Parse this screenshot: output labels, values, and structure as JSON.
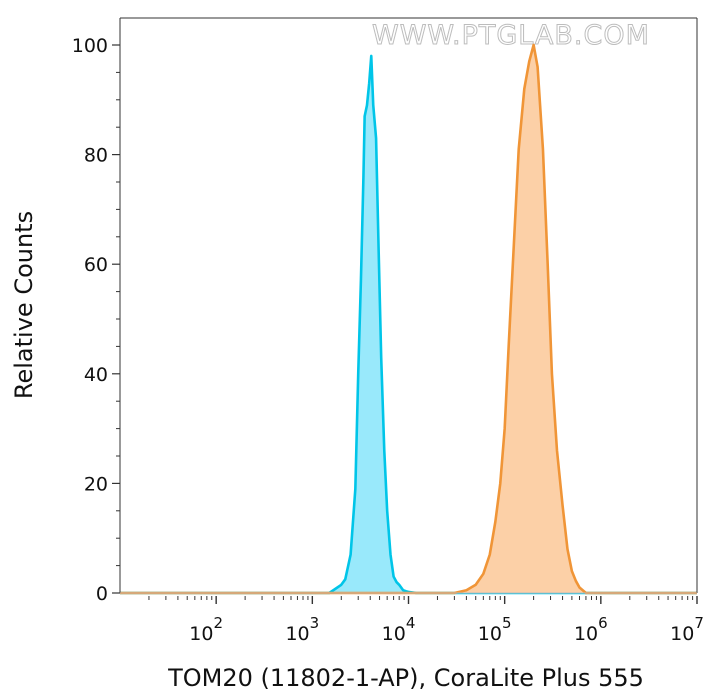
{
  "chart_data": {
    "type": "area",
    "title": "",
    "watermark": "WWW.PTGLAB.COM",
    "xlabel": "TOM20 (11802-1-AP), CoraLite Plus 555",
    "ylabel": "Relative Counts",
    "x_scale": "log",
    "xlim": [
      10,
      10000000
    ],
    "ylim": [
      0,
      105
    ],
    "y_ticks": [
      "0",
      "20",
      "40",
      "60",
      "80",
      "100"
    ],
    "x_ticks": [
      {
        "base": "10",
        "exp": "2"
      },
      {
        "base": "10",
        "exp": "3"
      },
      {
        "base": "10",
        "exp": "4"
      },
      {
        "base": "10",
        "exp": "5"
      },
      {
        "base": "10",
        "exp": "6"
      },
      {
        "base": "10",
        "exp": "7"
      }
    ],
    "series": [
      {
        "color": "#00c5e8",
        "fill": "#99e9fb",
        "x": [
          10,
          1500,
          2000,
          2200,
          2500,
          2800,
          3000,
          3200,
          3400,
          3500,
          3700,
          3900,
          4100,
          4300,
          4600,
          4900,
          5200,
          5600,
          6000,
          6500,
          7000,
          7500,
          8000,
          8800,
          9500,
          10000,
          12000,
          10000000
        ],
        "y": [
          0,
          0,
          1.5,
          2.5,
          7,
          19,
          40,
          57,
          76,
          87,
          89,
          93,
          98,
          89,
          83,
          62,
          43,
          26,
          15,
          7,
          3,
          2,
          1.5,
          0.5,
          0.3,
          0.2,
          0,
          0
        ]
      },
      {
        "color": "#f09537",
        "fill": "#fcd0a7",
        "x": [
          10,
          30000,
          40000,
          50000,
          60000,
          70000,
          80000,
          90000,
          100000,
          110000,
          120000,
          140000,
          160000,
          180000,
          200000,
          220000,
          250000,
          280000,
          310000,
          350000,
          400000,
          450000,
          500000,
          550000,
          600000,
          700000,
          10000000
        ],
        "y": [
          0,
          0,
          0.5,
          1.5,
          3.5,
          7,
          13,
          20,
          30,
          45,
          58,
          81,
          92,
          97,
          100,
          96,
          81,
          60,
          40,
          26,
          16,
          8,
          4,
          2.2,
          1,
          0,
          0
        ]
      }
    ]
  }
}
